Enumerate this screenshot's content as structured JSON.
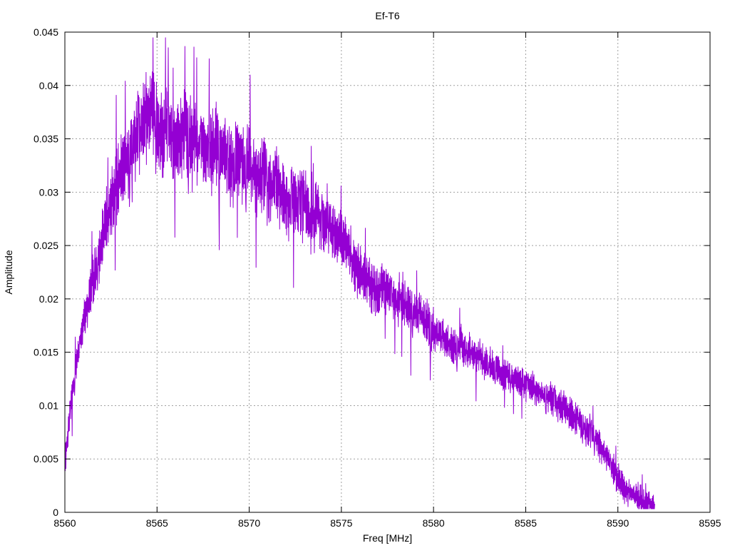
{
  "chart_data": {
    "type": "line",
    "title": "Ef-T6",
    "xlabel": "Freq [MHz]",
    "ylabel": "Amplitude",
    "xlim": [
      8560,
      8595
    ],
    "ylim": [
      0,
      0.045
    ],
    "x_ticks": [
      "8560",
      "8565",
      "8570",
      "8575",
      "8580",
      "8585",
      "8590",
      "8595"
    ],
    "y_ticks": [
      "0",
      "0.005",
      "0.01",
      "0.015",
      "0.02",
      "0.025",
      "0.03",
      "0.035",
      "0.04",
      "0.045"
    ],
    "grid": true,
    "legend": "none",
    "series_color": "#9400d3",
    "series": [
      {
        "x_start": 8560.0,
        "x_step": 0.25,
        "values": [
          0.0045,
          0.009,
          0.0125,
          0.0155,
          0.0175,
          0.0195,
          0.0215,
          0.0235,
          0.0255,
          0.0275,
          0.029,
          0.0305,
          0.0315,
          0.0325,
          0.0335,
          0.0345,
          0.0355,
          0.0365,
          0.0375,
          0.038,
          0.0365,
          0.035,
          0.037,
          0.0355,
          0.0345,
          0.035,
          0.0365,
          0.0345,
          0.0355,
          0.034,
          0.0345,
          0.0335,
          0.034,
          0.0345,
          0.0335,
          0.033,
          0.0325,
          0.033,
          0.034,
          0.032,
          0.033,
          0.0315,
          0.031,
          0.032,
          0.0305,
          0.03,
          0.031,
          0.0295,
          0.029,
          0.0285,
          0.0295,
          0.0285,
          0.029,
          0.028,
          0.0275,
          0.028,
          0.027,
          0.0275,
          0.0265,
          0.026,
          0.0255,
          0.025,
          0.024,
          0.023,
          0.0225,
          0.022,
          0.0215,
          0.021,
          0.0205,
          0.0215,
          0.021,
          0.02,
          0.0195,
          0.0205,
          0.0195,
          0.019,
          0.0185,
          0.019,
          0.018,
          0.0175,
          0.017,
          0.0165,
          0.0165,
          0.016,
          0.0155,
          0.0155,
          0.016,
          0.015,
          0.015,
          0.0145,
          0.015,
          0.014,
          0.014,
          0.0135,
          0.0135,
          0.013,
          0.013,
          0.0125,
          0.0125,
          0.012,
          0.012,
          0.0118,
          0.0115,
          0.0112,
          0.011,
          0.0108,
          0.0105,
          0.01,
          0.0098,
          0.0095,
          0.009,
          0.0088,
          0.0085,
          0.008,
          0.0075,
          0.007,
          0.0062,
          0.0055,
          0.0048,
          0.004,
          0.003,
          0.0025,
          0.002,
          0.0018,
          0.0015,
          0.0012,
          0.001,
          0.0008,
          0.0005
        ]
      }
    ]
  }
}
